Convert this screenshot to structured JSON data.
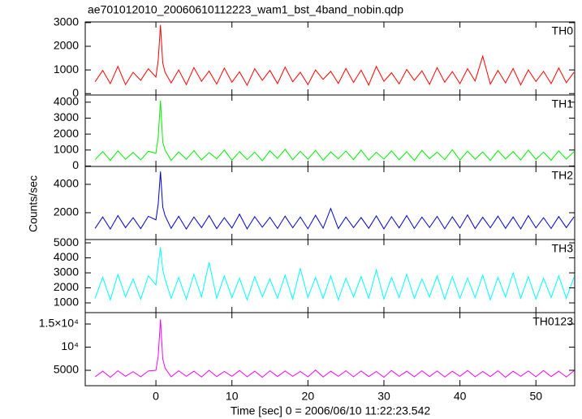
{
  "title": "ae701012010_20060610112223_wam1_bst_4band_nobin.qdp",
  "ylabel": "Counts/sec",
  "xlabel": "Time [sec] 0 = 2006/06/10 11:22:23.542",
  "chart_data": [
    {
      "type": "line",
      "label": "TH0",
      "color": "#ff0000",
      "x": [
        -8,
        -7,
        -6,
        -5,
        -4,
        -3,
        -2,
        -1,
        0,
        0.3,
        0.6,
        0.9,
        1.2,
        2,
        3,
        4,
        5,
        6,
        7,
        8,
        9,
        10,
        11,
        12,
        13,
        14,
        15,
        16,
        17,
        18,
        19,
        20,
        21,
        22,
        23,
        24,
        25,
        26,
        27,
        28,
        29,
        30,
        31,
        32,
        33,
        34,
        35,
        36,
        37,
        38,
        39,
        40,
        41,
        42,
        43,
        44,
        45,
        46,
        47,
        48,
        49,
        50,
        51,
        52,
        53,
        54,
        55
      ],
      "values": [
        500,
        980,
        420,
        1150,
        380,
        900,
        560,
        1050,
        700,
        1400,
        2900,
        1300,
        900,
        450,
        1000,
        380,
        1100,
        520,
        950,
        400,
        1080,
        480,
        920,
        350,
        1050,
        560,
        980,
        420,
        1120,
        500,
        900,
        380,
        1000,
        600,
        940,
        430,
        1060,
        470,
        990,
        360,
        1150,
        520,
        880,
        410,
        1020,
        560,
        960,
        390,
        1100,
        480,
        930,
        420,
        1050,
        530,
        1580,
        400,
        980,
        450,
        1060,
        370,
        1000,
        510,
        940,
        420,
        1080,
        460,
        900
      ],
      "xlim": [
        -9.3,
        55.1
      ],
      "ylim": [
        -60,
        3030
      ],
      "xticks": [
        0,
        10,
        20,
        30,
        40,
        50
      ],
      "yticks": [
        0,
        1000,
        2000,
        3000
      ]
    },
    {
      "type": "line",
      "label": "TH1",
      "color": "#00ee00",
      "x": [
        -8,
        -7,
        -6,
        -5,
        -4,
        -3,
        -2,
        -1,
        0,
        0.3,
        0.6,
        0.9,
        1.2,
        2,
        3,
        4,
        5,
        6,
        7,
        8,
        9,
        10,
        11,
        12,
        13,
        14,
        15,
        16,
        17,
        18,
        19,
        20,
        21,
        22,
        23,
        24,
        25,
        26,
        27,
        28,
        29,
        30,
        31,
        32,
        33,
        34,
        35,
        36,
        37,
        38,
        39,
        40,
        41,
        42,
        43,
        44,
        45,
        46,
        47,
        48,
        49,
        50,
        51,
        52,
        53,
        54,
        55
      ],
      "values": [
        400,
        900,
        350,
        950,
        420,
        850,
        380,
        920,
        800,
        1800,
        4100,
        1500,
        1000,
        350,
        880,
        420,
        960,
        380,
        840,
        450,
        1000,
        360,
        900,
        400,
        870,
        330,
        950,
        480,
        1050,
        390,
        920,
        420,
        980,
        360,
        880,
        450,
        940,
        400,
        1000,
        370,
        860,
        430,
        950,
        390,
        900,
        340,
        980,
        460,
        870,
        400,
        1020,
        370,
        930,
        420,
        880,
        350,
        960,
        440,
        900,
        380,
        990,
        410,
        870,
        360,
        950,
        430,
        900
      ],
      "xlim": [
        -9.3,
        55.1
      ],
      "ylim": [
        -30,
        4450
      ],
      "xticks": [
        0,
        10,
        20,
        30,
        40,
        50
      ],
      "yticks": [
        0,
        1000,
        2000,
        3000,
        4000
      ]
    },
    {
      "type": "line",
      "label": "TH2",
      "color": "#0000cc",
      "x": [
        -8,
        -7,
        -6,
        -5,
        -4,
        -3,
        -2,
        -1,
        0,
        0.3,
        0.6,
        0.9,
        1.2,
        2,
        3,
        4,
        5,
        6,
        7,
        8,
        9,
        10,
        11,
        12,
        13,
        14,
        15,
        16,
        17,
        18,
        19,
        20,
        21,
        22,
        23,
        24,
        25,
        26,
        27,
        28,
        29,
        30,
        31,
        32,
        33,
        34,
        35,
        36,
        37,
        38,
        39,
        40,
        41,
        42,
        43,
        44,
        45,
        46,
        47,
        48,
        49,
        50,
        51,
        52,
        53,
        54,
        55
      ],
      "values": [
        900,
        1700,
        850,
        1800,
        950,
        1650,
        880,
        1750,
        1500,
        2600,
        4900,
        2400,
        1800,
        900,
        1750,
        850,
        1700,
        950,
        1800,
        880,
        1650,
        920,
        1900,
        860,
        1720,
        980,
        1680,
        890,
        1760,
        940,
        1700,
        870,
        1820,
        910,
        2300,
        880,
        1700,
        950,
        1660,
        900,
        1780,
        860,
        1720,
        930,
        1800,
        890,
        1690,
        960,
        1740,
        870,
        1710,
        920,
        1850,
        880,
        1680,
        940,
        1760,
        900,
        1700,
        860,
        1790,
        930,
        1650,
        890,
        1730,
        950,
        1700
      ],
      "xlim": [
        -9.3,
        55.1
      ],
      "ylim": [
        110,
        5260
      ],
      "xticks": [
        0,
        10,
        20,
        30,
        40,
        50
      ],
      "yticks": [
        2000,
        4000
      ]
    },
    {
      "type": "line",
      "label": "TH3",
      "color": "#00ffff",
      "x": [
        -8,
        -7,
        -6,
        -5,
        -4,
        -3,
        -2,
        -1,
        0,
        0.3,
        0.6,
        0.9,
        1.2,
        2,
        3,
        4,
        5,
        6,
        7,
        8,
        9,
        10,
        11,
        12,
        13,
        14,
        15,
        16,
        17,
        18,
        19,
        20,
        21,
        22,
        23,
        24,
        25,
        26,
        27,
        28,
        29,
        30,
        31,
        32,
        33,
        34,
        35,
        36,
        37,
        38,
        39,
        40,
        41,
        42,
        43,
        44,
        45,
        46,
        47,
        48,
        49,
        50,
        51,
        52,
        53,
        54,
        55
      ],
      "values": [
        1300,
        2700,
        1200,
        2900,
        1400,
        2600,
        1250,
        2800,
        2200,
        3500,
        4700,
        3200,
        2600,
        1300,
        2700,
        1250,
        2900,
        1400,
        3700,
        1300,
        2800,
        1350,
        2650,
        1200,
        2750,
        1400,
        2600,
        1300,
        2850,
        1250,
        3300,
        1350,
        2700,
        1300,
        2800,
        1200,
        2650,
        1400,
        2750,
        1300,
        3200,
        1250,
        2700,
        1350,
        2900,
        1300,
        2600,
        1400,
        2800,
        1250,
        2750,
        1300,
        2650,
        1350,
        2850,
        1200,
        2700,
        1400,
        3000,
        1300,
        2750,
        1250,
        2650,
        1350,
        2800,
        1300,
        2700
      ],
      "xlim": [
        -9.3,
        55.1
      ],
      "ylim": [
        350,
        5220
      ],
      "xticks": [
        0,
        10,
        20,
        30,
        40,
        50
      ],
      "yticks": [
        1000,
        2000,
        3000,
        4000,
        5000
      ]
    },
    {
      "type": "line",
      "label": "TH0123",
      "color": "#ff00ff",
      "x": [
        -8,
        -7,
        -6,
        -5,
        -4,
        -3,
        -2,
        -1,
        0,
        0.3,
        0.6,
        0.9,
        1.2,
        2,
        3,
        4,
        5,
        6,
        7,
        8,
        9,
        10,
        11,
        12,
        13,
        14,
        15,
        16,
        17,
        18,
        19,
        20,
        21,
        22,
        23,
        24,
        25,
        26,
        27,
        28,
        29,
        30,
        31,
        32,
        33,
        34,
        35,
        36,
        37,
        38,
        39,
        40,
        41,
        42,
        43,
        44,
        45,
        46,
        47,
        48,
        49,
        50,
        51,
        52,
        53,
        54,
        55
      ],
      "values": [
        3600,
        4800,
        3500,
        4900,
        3700,
        4700,
        3600,
        4850,
        5000,
        8000,
        16000,
        7500,
        5500,
        3600,
        4900,
        3700,
        4800,
        3550,
        5000,
        3650,
        4750,
        3700,
        4950,
        3600,
        4800,
        3500,
        4900,
        3650,
        4850,
        3700,
        4750,
        3600,
        5050,
        3550,
        4800,
        3700,
        4900,
        3600,
        4850,
        3650,
        4750,
        3500,
        4950,
        3700,
        4800,
        3600,
        4900,
        3650,
        4850,
        3550,
        4800,
        3700,
        4950,
        3600,
        4750,
        3650,
        4900,
        3500,
        4800,
        3700,
        4850,
        3600,
        4950,
        3650,
        4800,
        3550,
        4900
      ],
      "xlim": [
        -9.3,
        55.1
      ],
      "ylim": [
        1670,
        17460
      ],
      "xticks": [
        0,
        10,
        20,
        30,
        40,
        50
      ],
      "yticks": [
        5000,
        {
          "value": 10000,
          "label": "10⁴"
        },
        {
          "value": 15000,
          "label": "1.5×10⁴"
        }
      ]
    }
  ]
}
